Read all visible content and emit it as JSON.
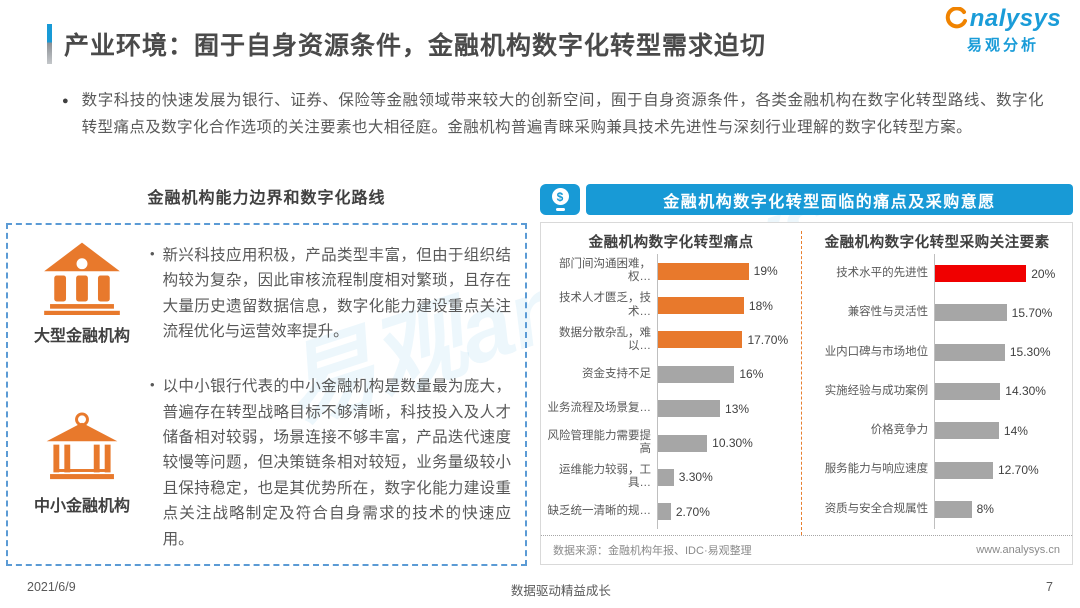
{
  "page": {
    "title": "产业环境：囿于自身资源条件，金融机构数字化转型需求迫切",
    "intro": "数字科技的快速发展为银行、证券、保险等金融领域带来较大的创新空间，囿于自身资源条件，各类金融机构在数字化转型路线、数字化转型痛点及数字化合作选项的关注要素也大相径庭。金融机构普遍青睐采购兼具技术先进性与深刻行业理解的数字化转型方案。",
    "footer": {
      "date": "2021/6/9",
      "slogan": "数据驱动精益成长",
      "page_number": "7"
    }
  },
  "logo": {
    "brand": "nalysys",
    "brand_cn": "易观分析"
  },
  "watermark": {
    "text": "易观analysys"
  },
  "left_panel": {
    "heading": "金融机构能力边界和数字化路线",
    "items": [
      {
        "icon": "bank-large-icon",
        "label": "大型金融机构",
        "text": "新兴科技应用积极，产品类型丰富，但由于组织结构较为复杂，因此审核流程制度相对繁琐，且存在大量历史遗留数据信息，数字化能力建设重点关注流程优化与运营效率提升。"
      },
      {
        "icon": "bank-small-icon",
        "label": "中小金融机构",
        "text": "以中小银行代表的中小金融机构是数量最为庞大，普遍存在转型战略目标不够清晰，科技投入及人才储备相对较弱，场景连接不够丰富，产品迭代速度较慢等问题，但决策链条相对较短，业务量级较小且保持稳定，也是其优势所在，数字化能力建设重点关注战略制定及符合自身需求的技术的快速应用。"
      }
    ]
  },
  "right_panel": {
    "header": "金融机构数字化转型面临的痛点及采购意愿",
    "source": "数据来源：金融机构年报、IDC·易观整理",
    "website": "www.analysys.cn"
  },
  "chart_data": [
    {
      "type": "bar",
      "orientation": "horizontal",
      "title": "金融机构数字化转型痛点",
      "categories": [
        "部门间沟通困难，权…",
        "技术人才匮乏，技术…",
        "数据分散杂乱，难以…",
        "资金支持不足",
        "业务流程及场景复…",
        "风险管理能力需要提高",
        "运维能力较弱，工具…",
        "缺乏统一清晰的规…"
      ],
      "values": [
        19,
        18,
        17.7,
        16,
        13,
        10.3,
        3.3,
        2.7
      ],
      "labels": [
        "19%",
        "18%",
        "17.70%",
        "16%",
        "13%",
        "10.30%",
        "3.30%",
        "2.70%"
      ],
      "bar_colors": [
        "#E8792C",
        "#E8792C",
        "#E8792C",
        "#A6A6A6",
        "#A6A6A6",
        "#A6A6A6",
        "#A6A6A6",
        "#A6A6A6"
      ],
      "xlim": [
        0,
        21
      ],
      "grid": false,
      "legend": "none"
    },
    {
      "type": "bar",
      "orientation": "horizontal",
      "title": "金融机构数字化转型采购关注要素",
      "categories": [
        "技术水平的先进性",
        "兼容性与灵活性",
        "业内口碑与市场地位",
        "实施经验与成功案例",
        "价格竞争力",
        "服务能力与响应速度",
        "资质与安全合规属性"
      ],
      "values": [
        20,
        15.7,
        15.3,
        14.3,
        14,
        12.7,
        8
      ],
      "labels": [
        "20%",
        "15.70%",
        "15.30%",
        "14.30%",
        "14%",
        "12.70%",
        "8%"
      ],
      "bar_colors": [
        "#F00000",
        "#A6A6A6",
        "#A6A6A6",
        "#A6A6A6",
        "#A6A6A6",
        "#A6A6A6",
        "#A6A6A6"
      ],
      "xlim": [
        0,
        21
      ],
      "grid": false,
      "legend": "none"
    }
  ],
  "colors": {
    "accent_blue": "#189AD6",
    "orange": "#E8792C",
    "red": "#F00000",
    "gray_bar": "#A6A6A6",
    "dashed_box_blue": "#5B9BD5",
    "title_text": "#4a4a4a"
  }
}
